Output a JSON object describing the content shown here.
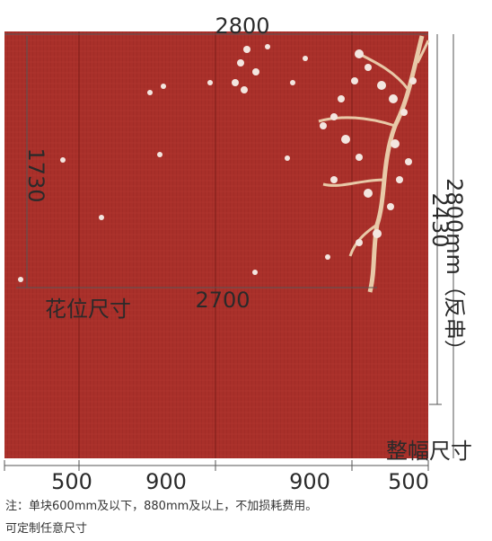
{
  "dimensions": {
    "top_width": "2800",
    "left_height": "1730",
    "pattern_label": "花位尺寸",
    "pattern_width": "2700",
    "right_height": "2430",
    "right_height_alt": "2800mm（反串）",
    "full_label": "整幅尺寸",
    "bottom_segments": [
      "500",
      "900",
      "900",
      "500"
    ]
  },
  "notes": [
    "注：单块600mm及以下，880mm及以上，不加损耗费用。",
    "可定制任意尺寸"
  ]
}
